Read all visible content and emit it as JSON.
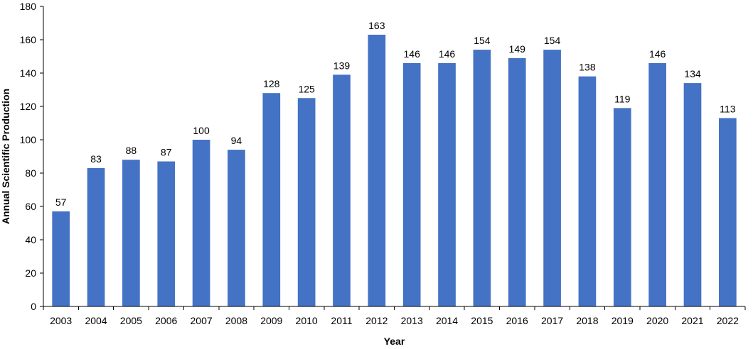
{
  "chart_data": {
    "type": "bar",
    "title": "",
    "xlabel": "Year",
    "ylabel": "Annual Scientific Production",
    "categories": [
      "2003",
      "2004",
      "2005",
      "2006",
      "2007",
      "2008",
      "2009",
      "2010",
      "2011",
      "2012",
      "2013",
      "2014",
      "2015",
      "2016",
      "2017",
      "2018",
      "2019",
      "2020",
      "2021",
      "2022"
    ],
    "values": [
      57,
      83,
      88,
      87,
      100,
      94,
      128,
      125,
      139,
      163,
      146,
      146,
      154,
      149,
      154,
      138,
      119,
      146,
      134,
      113
    ],
    "ylim": [
      0,
      180
    ],
    "yticks": [
      0,
      20,
      40,
      60,
      80,
      100,
      120,
      140,
      160,
      180
    ],
    "bar_color": "#4472c4",
    "grid": false,
    "legend": "none",
    "data_labels": true
  }
}
